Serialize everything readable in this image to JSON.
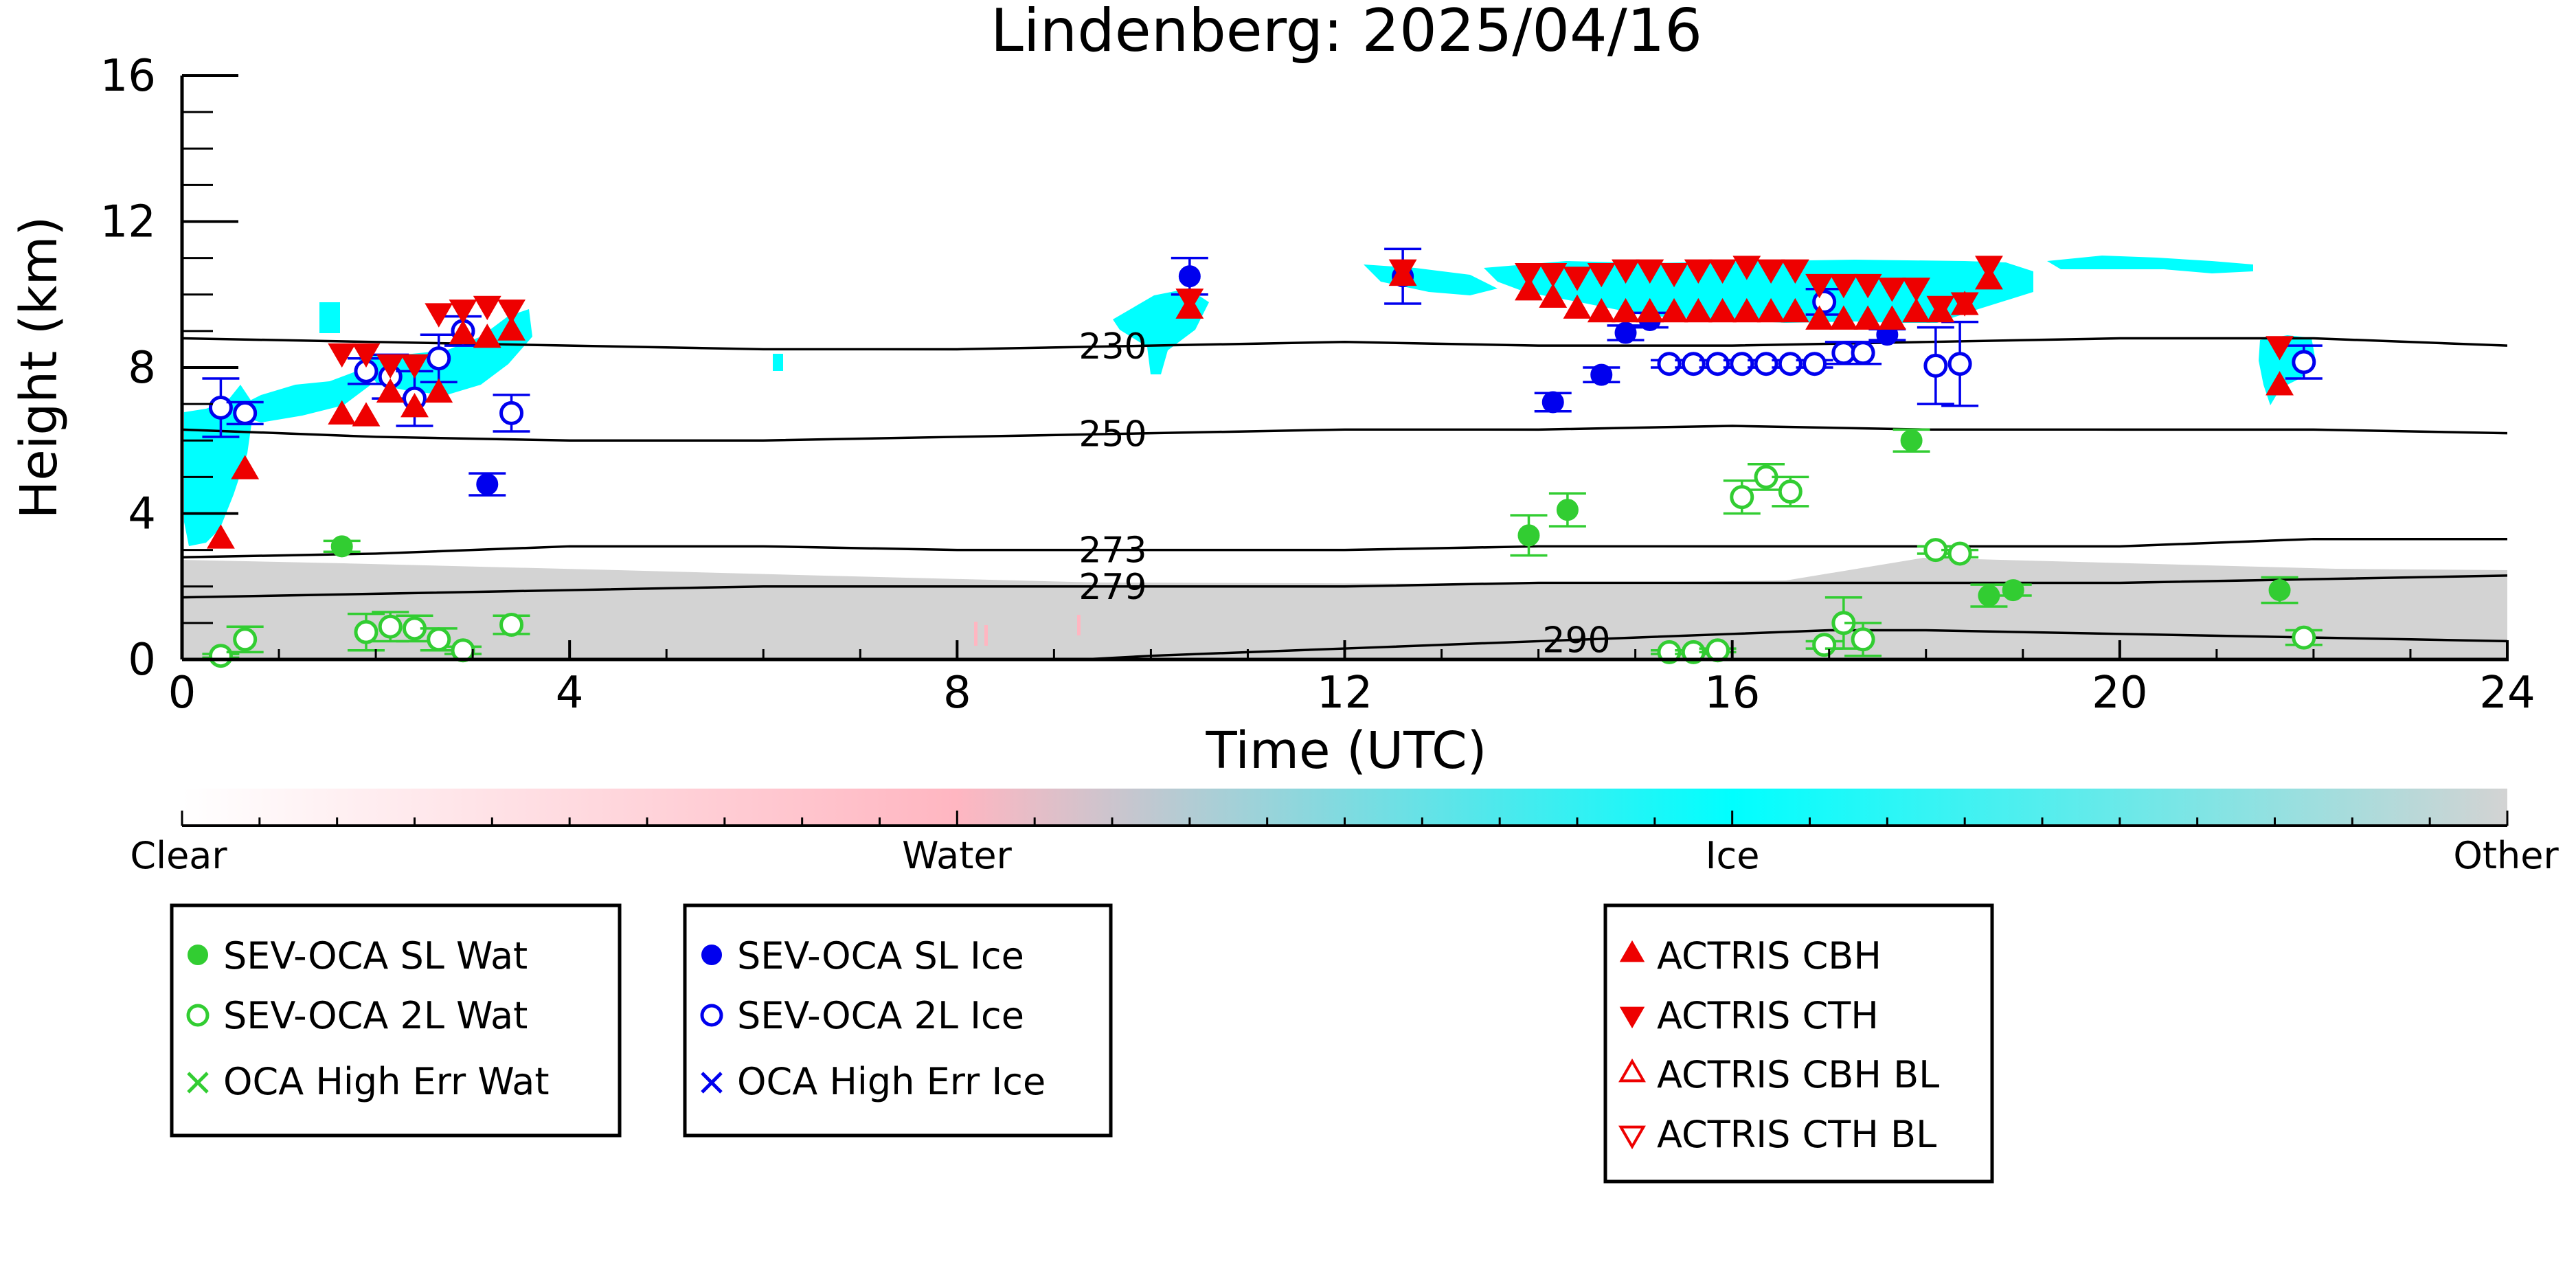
{
  "chart_data": {
    "type": "scatter",
    "title": "Lindenberg: 2025/04/16",
    "xlabel": "Time (UTC)",
    "ylabel": "Height (km)",
    "xlim": [
      0,
      24
    ],
    "ylim": [
      0,
      16
    ],
    "x_ticks": [
      "0",
      "4",
      "8",
      "12",
      "16",
      "20",
      "24"
    ],
    "y_ticks": [
      "0",
      "4",
      "8",
      "12",
      "16"
    ],
    "grid": false,
    "colorbar": {
      "labels": [
        "Clear",
        "Water",
        "Ice",
        "Other"
      ],
      "colors": [
        "#ffffff",
        "#ffb6c1",
        "#00ffff",
        "#d3d3d3"
      ]
    },
    "contours": [
      {
        "label": "230",
        "x": [
          0,
          2,
          4,
          6,
          8,
          10,
          12,
          14,
          16,
          18,
          20,
          22,
          24
        ],
        "y": [
          8.8,
          8.7,
          8.6,
          8.5,
          8.5,
          8.6,
          8.7,
          8.6,
          8.6,
          8.7,
          8.8,
          8.8,
          8.6
        ]
      },
      {
        "label": "250",
        "x": [
          0,
          2,
          4,
          6,
          8,
          10,
          12,
          14,
          16,
          18,
          20,
          22,
          24
        ],
        "y": [
          6.3,
          6.1,
          6.0,
          6.0,
          6.1,
          6.2,
          6.3,
          6.3,
          6.4,
          6.3,
          6.3,
          6.3,
          6.2
        ]
      },
      {
        "label": "273",
        "x": [
          0,
          2,
          4,
          6,
          8,
          10,
          12,
          14,
          16,
          18,
          20,
          22,
          24
        ],
        "y": [
          2.8,
          2.9,
          3.1,
          3.1,
          3.0,
          3.0,
          3.0,
          3.1,
          3.1,
          3.1,
          3.1,
          3.3,
          3.3
        ]
      },
      {
        "label": "279",
        "x": [
          0,
          2,
          4,
          6,
          8,
          10,
          12,
          14,
          16,
          18,
          20,
          22,
          24
        ],
        "y": [
          1.7,
          1.8,
          1.9,
          2.0,
          2.0,
          2.0,
          2.0,
          2.1,
          2.1,
          2.1,
          2.1,
          2.2,
          2.3
        ]
      },
      {
        "label": "290",
        "x": [
          9.3,
          10,
          12,
          14,
          16,
          17,
          18,
          20,
          22,
          24
        ],
        "y": [
          0.0,
          0.1,
          0.3,
          0.5,
          0.7,
          0.8,
          0.8,
          0.7,
          0.6,
          0.5
        ]
      }
    ],
    "series": [
      {
        "name": "SEV-OCA SL Wat",
        "marker": "filled-circle",
        "color": "#32cd32",
        "x": [
          1.65,
          13.9,
          14.3,
          17.85,
          18.65,
          18.9,
          21.65
        ],
        "y": [
          3.1,
          3.4,
          4.1,
          6.0,
          1.75,
          1.9,
          1.9
        ],
        "err": [
          0.15,
          0.55,
          0.45,
          0.3,
          0.3,
          0.15,
          0.35
        ]
      },
      {
        "name": "SEV-OCA 2L Wat",
        "marker": "open-circle",
        "color": "#32cd32",
        "x": [
          0.4,
          0.65,
          1.9,
          2.15,
          2.4,
          2.65,
          2.9,
          3.4,
          15.35,
          15.6,
          15.85,
          16.1,
          16.35,
          16.6,
          16.95,
          17.15,
          17.35,
          18.1,
          18.35,
          21.9
        ],
        "y": [
          0.1,
          0.55,
          0.75,
          0.9,
          0.85,
          0.55,
          0.25,
          0.95,
          0.2,
          0.2,
          0.25,
          4.45,
          5.0,
          4.6,
          0.4,
          1.0,
          0.55,
          3.0,
          2.9,
          0.6
        ],
        "err": [
          0.05,
          0.35,
          0.5,
          0.4,
          0.35,
          0.3,
          0.1,
          0.25,
          0.05,
          0.05,
          0.05,
          0.45,
          0.35,
          0.4,
          0.1,
          0.7,
          0.45,
          0.1,
          0.1,
          0.2
        ]
      },
      {
        "name": "OCA High Err Wat",
        "marker": "x",
        "color": "#32cd32",
        "x": [],
        "y": [],
        "err": []
      },
      {
        "name": "SEV-OCA SL Ice",
        "marker": "filled-circle",
        "color": "#0000ee",
        "x": [
          3.15,
          10.4,
          12.6,
          14.15,
          14.65,
          14.9,
          15.15,
          17.6
        ],
        "y": [
          4.8,
          10.5,
          10.5,
          7.05,
          7.8,
          8.95,
          9.3,
          8.9
        ],
        "err": [
          0.3,
          0.5,
          0.75,
          0.25,
          0.2,
          0.2,
          0.2,
          0.15
        ]
      },
      {
        "name": "SEV-OCA 2L Ice",
        "marker": "open-circle",
        "color": "#0000ee",
        "x": [
          0.4,
          0.65,
          1.9,
          2.15,
          2.4,
          2.65,
          2.9,
          3.4,
          15.35,
          15.6,
          15.85,
          16.1,
          16.35,
          16.6,
          16.85,
          16.95,
          17.15,
          17.35,
          18.1,
          18.35,
          21.9
        ],
        "y": [
          6.9,
          6.75,
          7.9,
          7.75,
          7.15,
          8.25,
          9.0,
          6.75,
          8.1,
          8.1,
          8.1,
          8.1,
          8.1,
          8.1,
          8.1,
          9.8,
          8.4,
          8.4,
          8.05,
          8.1,
          8.15
        ],
        "err": [
          0.8,
          0.3,
          0.35,
          0.6,
          0.75,
          0.65,
          0.4,
          0.5,
          0.1,
          0.1,
          0.1,
          0.1,
          0.1,
          0.1,
          0.1,
          0.35,
          0.3,
          0.3,
          1.05,
          1.15,
          0.45
        ]
      },
      {
        "name": "OCA High Err Ice",
        "marker": "x",
        "color": "#0000ee",
        "x": [],
        "y": [],
        "err": []
      },
      {
        "name": "ACTRIS CBH",
        "marker": "triangle-up",
        "color": "#ee0000",
        "x": [
          0.4,
          0.65,
          1.65,
          1.9,
          2.15,
          2.4,
          2.65,
          2.9,
          3.15,
          3.4,
          10.4,
          12.6,
          13.9,
          14.15,
          14.4,
          14.65,
          14.9,
          15.15,
          15.4,
          15.65,
          15.9,
          16.15,
          16.4,
          16.65,
          16.9,
          17.15,
          17.4,
          17.65,
          17.9,
          18.15,
          18.4,
          18.65,
          21.65
        ],
        "y": [
          3.3,
          5.2,
          6.7,
          6.65,
          7.3,
          6.9,
          7.3,
          8.9,
          8.8,
          9.0,
          9.6,
          10.5,
          10.1,
          9.9,
          9.6,
          9.5,
          9.5,
          9.5,
          9.5,
          9.5,
          9.5,
          9.5,
          9.5,
          9.5,
          9.3,
          9.3,
          9.3,
          9.3,
          9.5,
          9.5,
          9.7,
          10.4,
          7.5
        ]
      },
      {
        "name": "ACTRIS CTH",
        "marker": "triangle-down",
        "color": "#ee0000",
        "x": [
          1.65,
          1.9,
          2.15,
          2.4,
          2.65,
          2.9,
          3.15,
          3.4,
          10.4,
          12.6,
          13.9,
          14.15,
          14.4,
          14.65,
          14.9,
          15.15,
          15.4,
          15.65,
          15.9,
          16.15,
          16.4,
          16.65,
          16.9,
          17.15,
          17.4,
          17.65,
          17.9,
          18.15,
          18.4,
          18.65,
          21.65
        ],
        "y": [
          8.4,
          8.4,
          8.1,
          8.1,
          9.5,
          9.6,
          9.7,
          9.6,
          9.9,
          10.7,
          10.6,
          10.6,
          10.5,
          10.6,
          10.7,
          10.7,
          10.6,
          10.7,
          10.7,
          10.8,
          10.7,
          10.7,
          10.3,
          10.3,
          10.3,
          10.2,
          10.2,
          9.7,
          9.8,
          10.8,
          8.6
        ]
      },
      {
        "name": "ACTRIS CBH BL",
        "marker": "open-triangle-up",
        "color": "#ee0000",
        "x": [],
        "y": []
      },
      {
        "name": "ACTRIS CTH BL",
        "marker": "open-triangle-down",
        "color": "#ee0000",
        "x": [],
        "y": []
      }
    ]
  }
}
